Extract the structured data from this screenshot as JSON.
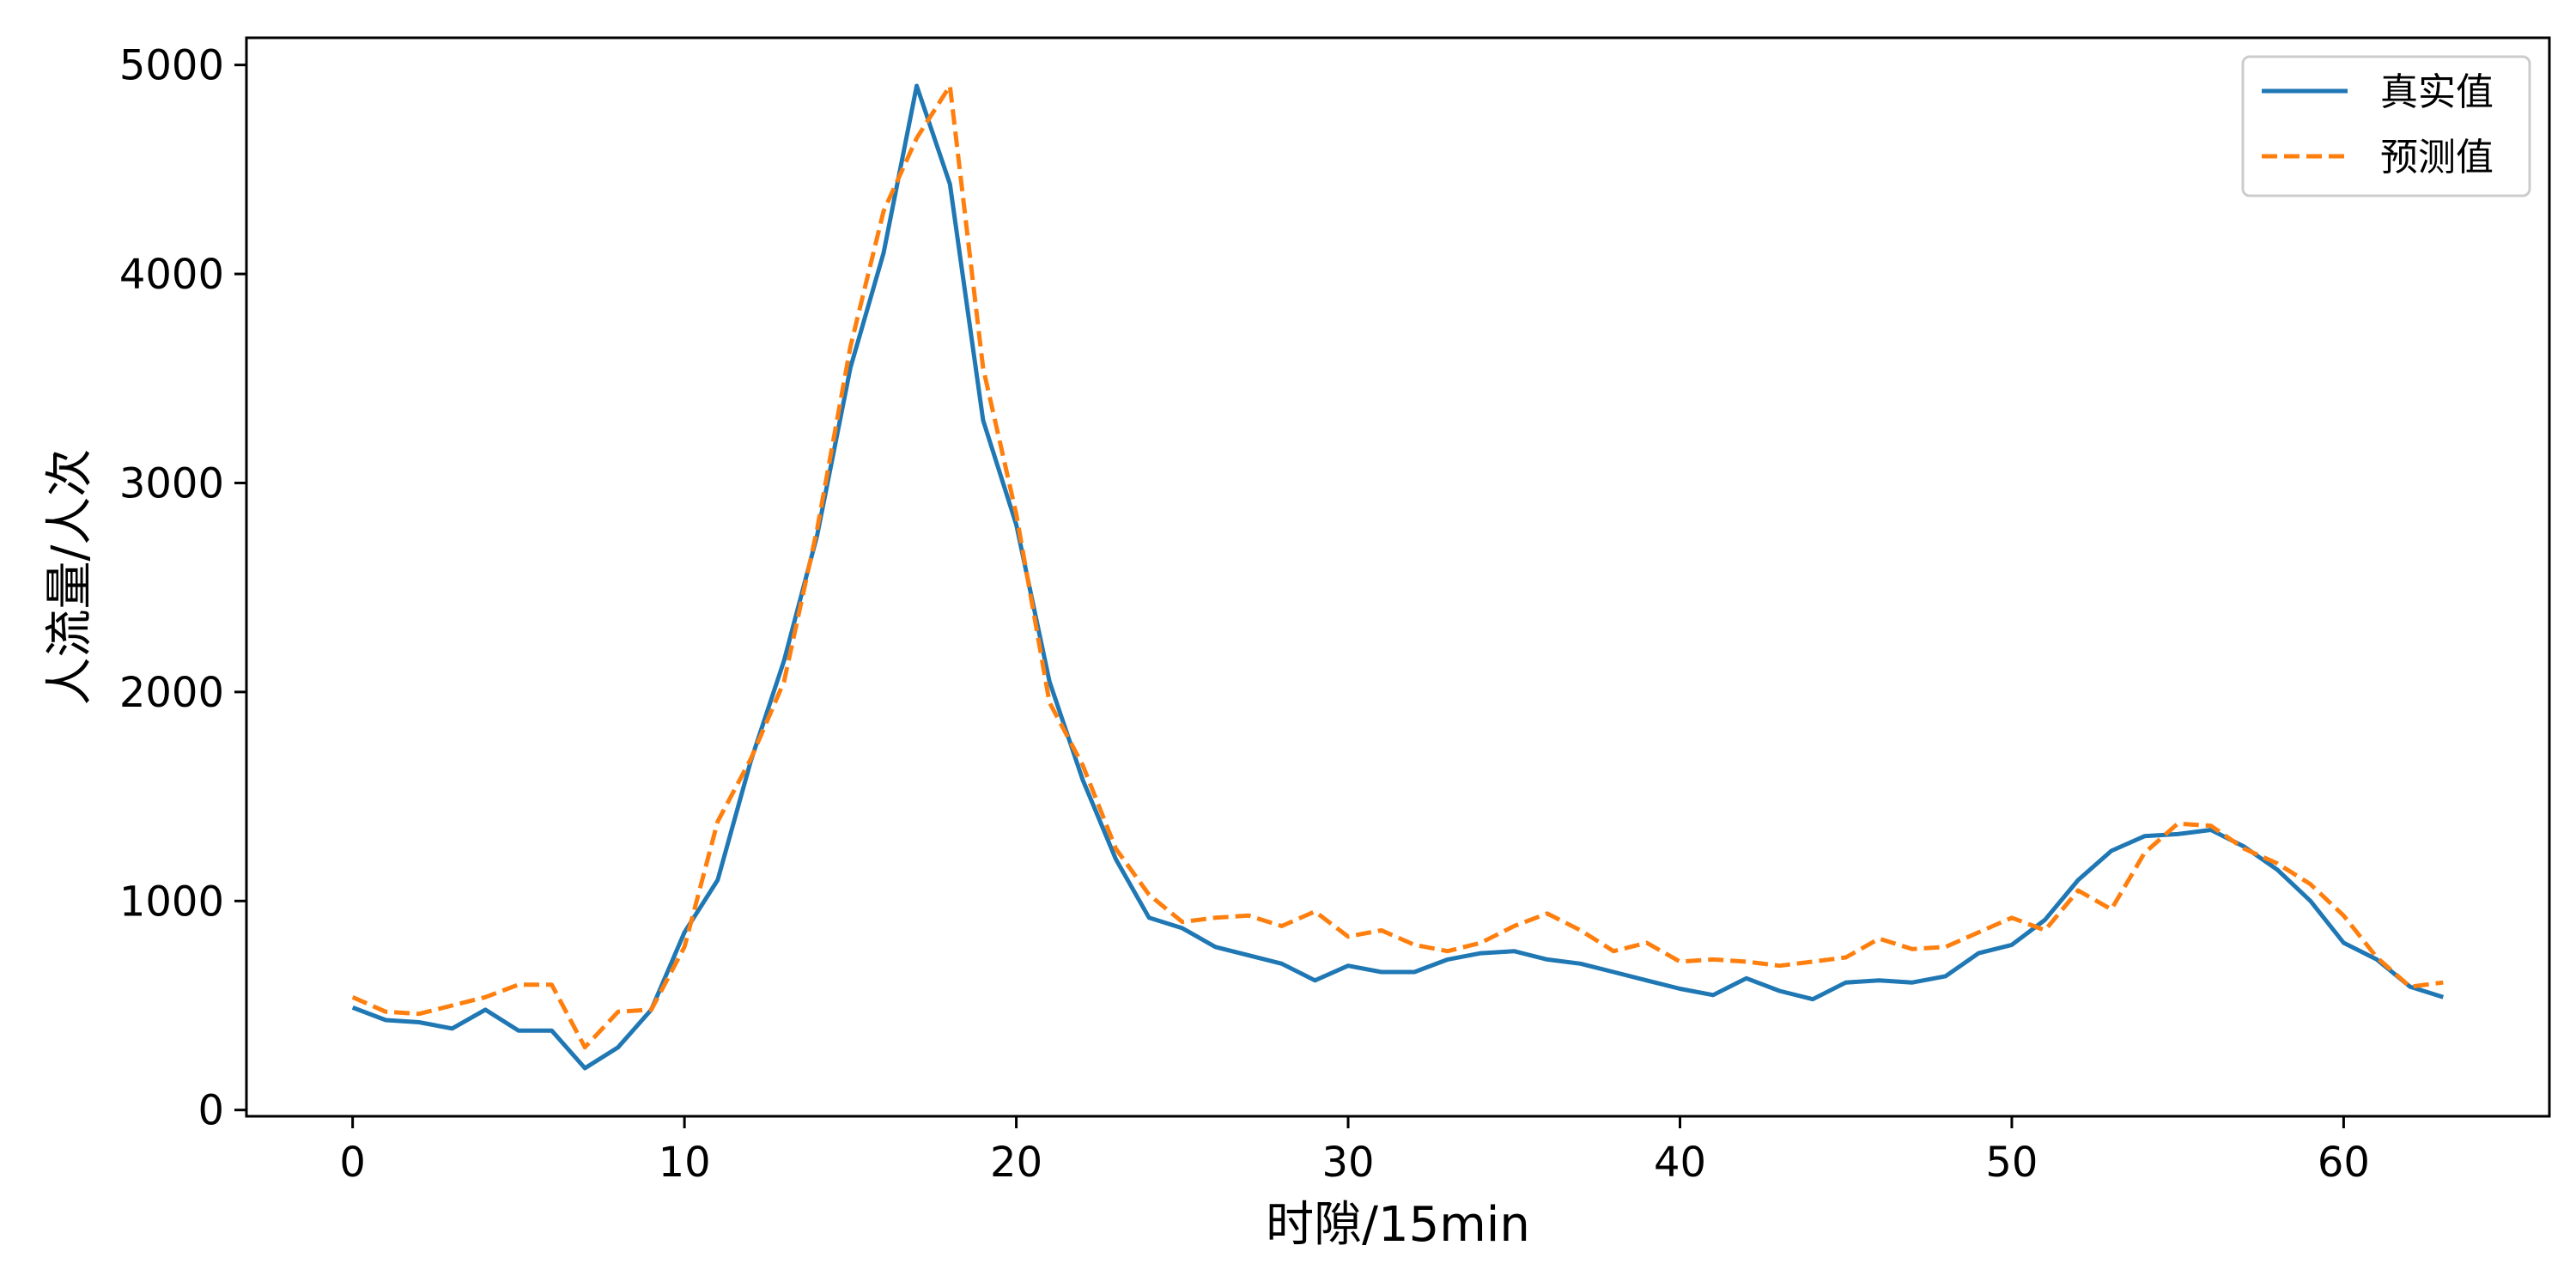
{
  "chart_data": {
    "type": "line",
    "xlabel": "时隙/15min",
    "ylabel": "人流量/人次",
    "xlim": [
      -3.2,
      66.2
    ],
    "ylim": [
      -30,
      5130
    ],
    "xticks": [
      0,
      10,
      20,
      30,
      40,
      50,
      60
    ],
    "yticks": [
      0,
      1000,
      2000,
      3000,
      4000,
      5000
    ],
    "legend_position": "top-right",
    "grid": false,
    "x": [
      0,
      1,
      2,
      3,
      4,
      5,
      6,
      7,
      8,
      9,
      10,
      11,
      12,
      13,
      14,
      15,
      16,
      17,
      18,
      19,
      20,
      21,
      22,
      23,
      24,
      25,
      26,
      27,
      28,
      29,
      30,
      31,
      32,
      33,
      34,
      35,
      36,
      37,
      38,
      39,
      40,
      41,
      42,
      43,
      44,
      45,
      46,
      47,
      48,
      49,
      50,
      51,
      52,
      53,
      54,
      55,
      56,
      57,
      58,
      59,
      60,
      61,
      62,
      63
    ],
    "series": [
      {
        "name": "真实值",
        "color": "#1f77b4",
        "style": "solid",
        "values": [
          490,
          430,
          420,
          390,
          480,
          380,
          380,
          200,
          300,
          480,
          850,
          1100,
          1670,
          2150,
          2750,
          3550,
          4100,
          4900,
          4430,
          3300,
          2800,
          2050,
          1580,
          1200,
          920,
          870,
          780,
          740,
          700,
          620,
          690,
          660,
          660,
          720,
          750,
          760,
          720,
          700,
          660,
          620,
          580,
          550,
          630,
          570,
          530,
          610,
          620,
          610,
          640,
          750,
          790,
          910,
          1100,
          1240,
          1310,
          1320,
          1340,
          1260,
          1150,
          1000,
          800,
          720,
          590,
          540
        ]
      },
      {
        "name": "预测值",
        "color": "#ff7f0e",
        "style": "dashed",
        "values": [
          540,
          470,
          460,
          500,
          540,
          600,
          600,
          300,
          470,
          480,
          780,
          1380,
          1680,
          2050,
          2780,
          3650,
          4300,
          4650,
          4900,
          3550,
          2850,
          1950,
          1650,
          1250,
          1030,
          900,
          920,
          930,
          880,
          950,
          830,
          860,
          790,
          760,
          800,
          880,
          940,
          860,
          760,
          800,
          710,
          720,
          710,
          690,
          710,
          730,
          820,
          770,
          780,
          850,
          920,
          860,
          1050,
          960,
          1230,
          1370,
          1360,
          1250,
          1180,
          1080,
          930,
          730,
          590,
          610
        ]
      }
    ]
  }
}
